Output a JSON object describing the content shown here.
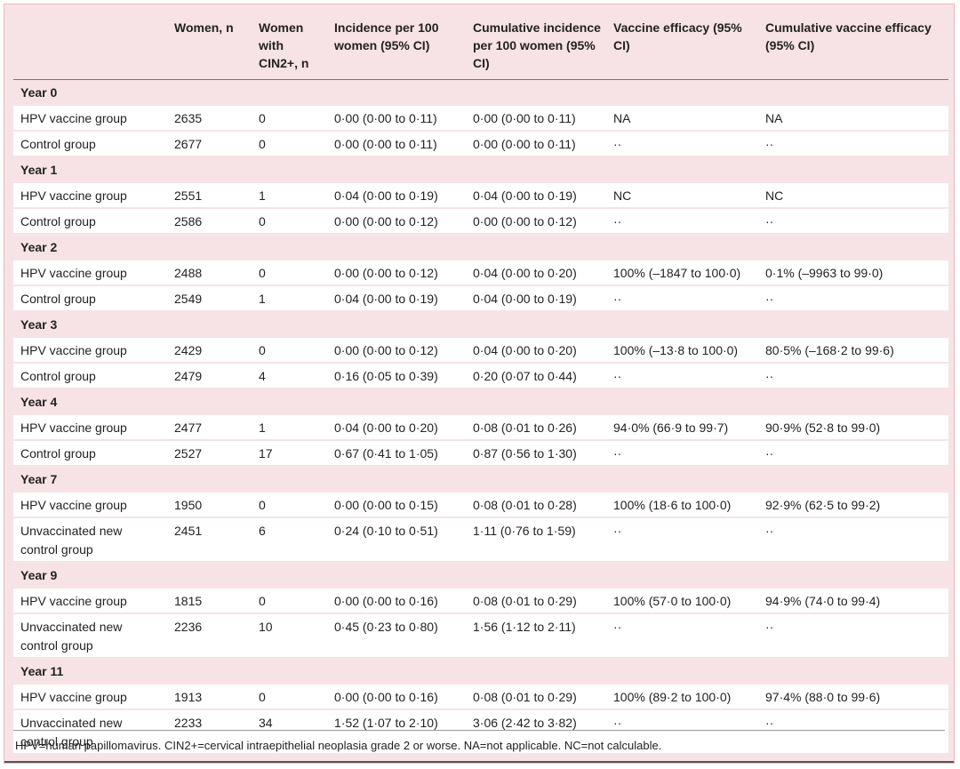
{
  "table": {
    "columns": [
      "Women, n",
      "Women with CIN2+, n",
      "Incidence per 100 women (95% CI)",
      "Cumulative incidence per 100 women (95% CI)",
      "Vaccine efficacy (95% CI)",
      "Cumulative vaccine efficacy (95% CI)"
    ],
    "groups": [
      {
        "label": "Year 0",
        "rows": [
          [
            "HPV vaccine group",
            "2635",
            "0",
            "0·00 (0·00 to 0·11)",
            "0·00 (0·00 to 0·11)",
            "NA",
            "NA"
          ],
          [
            "Control group",
            "2677",
            "0",
            "0·00 (0·00 to 0·11)",
            "0·00 (0·00 to 0·11)",
            "··",
            "··"
          ]
        ]
      },
      {
        "label": "Year 1",
        "rows": [
          [
            "HPV vaccine group",
            "2551",
            "1",
            "0·04 (0·00 to 0·19)",
            "0·04 (0·00 to 0·19)",
            "NC",
            "NC"
          ],
          [
            "Control group",
            "2586",
            "0",
            "0·00 (0·00 to 0·12)",
            "0·00 (0·00 to 0·12)",
            "··",
            "··"
          ]
        ]
      },
      {
        "label": "Year 2",
        "rows": [
          [
            "HPV vaccine group",
            "2488",
            "0",
            "0·00 (0·00 to 0·12)",
            "0·04 (0·00 to 0·20)",
            "100% (–1847 to 100·0)",
            "0·1% (–9963 to 99·0)"
          ],
          [
            "Control group",
            "2549",
            "1",
            "0·04 (0·00 to 0·19)",
            "0·04 (0·00 to 0·19)",
            "··",
            "··"
          ]
        ]
      },
      {
        "label": "Year 3",
        "rows": [
          [
            "HPV vaccine group",
            "2429",
            "0",
            "0·00 (0·00 to 0·12)",
            "0·04 (0·00 to 0·20)",
            "100% (–13·8 to 100·0)",
            "80·5% (–168·2 to 99·6)"
          ],
          [
            "Control group",
            "2479",
            "4",
            "0·16 (0·05 to 0·39)",
            "0·20 (0·07 to 0·44)",
            "··",
            "··"
          ]
        ]
      },
      {
        "label": "Year 4",
        "rows": [
          [
            "HPV vaccine group",
            "2477",
            "1",
            "0·04 (0·00 to 0·20)",
            "0·08 (0·01 to 0·26)",
            "94·0% (66·9 to 99·7)",
            "90·9% (52·8 to 99·0)"
          ],
          [
            "Control group",
            "2527",
            "17",
            "0·67 (0·41 to 1·05)",
            "0·87 (0·56 to 1·30)",
            "··",
            "··"
          ]
        ]
      },
      {
        "label": "Year 7",
        "rows": [
          [
            "HPV vaccine group",
            "1950",
            "0",
            "0·00 (0·00 to 0·15)",
            "0·08 (0·01 to 0·28)",
            "100% (18·6 to 100·0)",
            "92·9% (62·5 to 99·2)"
          ],
          [
            "Unvaccinated new control group",
            "2451",
            "6",
            "0·24 (0·10 to 0·51)",
            "1·11 (0·76 to 1·59)",
            "··",
            "··"
          ]
        ]
      },
      {
        "label": "Year 9",
        "rows": [
          [
            "HPV vaccine group",
            "1815",
            "0",
            "0·00 (0·00 to 0·16)",
            "0·08 (0·01 to 0·29)",
            "100% (57·0 to 100·0)",
            "94·9% (74·0 to 99·4)"
          ],
          [
            "Unvaccinated new control group",
            "2236",
            "10",
            "0·45 (0·23 to 0·80)",
            "1·56 (1·12 to 2·11)",
            "··",
            "··"
          ]
        ]
      },
      {
        "label": "Year 11",
        "rows": [
          [
            "HPV vaccine group",
            "1913",
            "0",
            "0·00 (0·00 to 0·16)",
            "0·08 (0·01 to 0·29)",
            "100% (89·2 to 100·0)",
            "97·4% (88·0 to 99·6)"
          ],
          [
            "Unvaccinated new control group",
            "2233",
            "34",
            "1·52 (1·07 to 2·10)",
            "3·06 (2·42 to 3·82)",
            "··",
            "··"
          ]
        ]
      }
    ]
  },
  "footnote": "HPV=human papillomavirus. CIN2+=cervical intraepithelial neoplasia grade 2 or worse. NA=not applicable. NC=not calculable."
}
